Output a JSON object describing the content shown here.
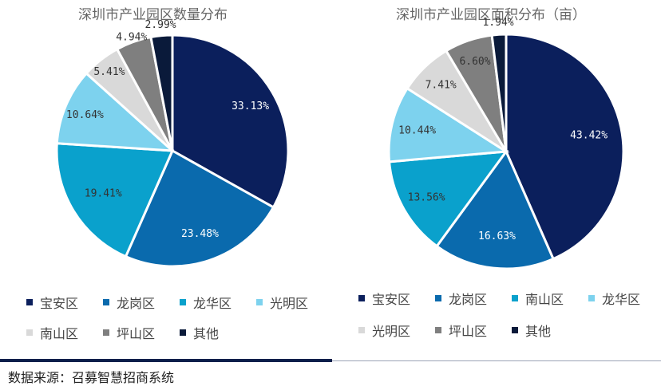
{
  "chart_data": [
    {
      "type": "pie",
      "title": "深圳市产业园区数量分布",
      "series": [
        {
          "name": "宝安区",
          "value": 33.13,
          "label": "33.13%",
          "color": "#0b1f5c",
          "label_color": "#ffffff"
        },
        {
          "name": "龙岗区",
          "value": 23.48,
          "label": "23.48%",
          "color": "#0a6aad",
          "label_color": "#ffffff"
        },
        {
          "name": "龙华区",
          "value": 19.41,
          "label": "19.41%",
          "color": "#0aa1cc",
          "label_color": "#333333"
        },
        {
          "name": "光明区",
          "value": 10.64,
          "label": "10.64%",
          "color": "#7dd2ee",
          "label_color": "#333333"
        },
        {
          "name": "南山区",
          "value": 5.41,
          "label": "5.41%",
          "color": "#d9d9d9",
          "label_color": "#333333"
        },
        {
          "name": "坪山区",
          "value": 4.94,
          "label": "4.94%",
          "color": "#7f7f7f",
          "label_color": "#333333"
        },
        {
          "name": "其他",
          "value": 2.99,
          "label": "2.99%",
          "color": "#0a1a3a",
          "label_color": "#333333"
        }
      ],
      "legend_position": "bottom"
    },
    {
      "type": "pie",
      "title": "深圳市产业园区面积分布（亩）",
      "series": [
        {
          "name": "宝安区",
          "value": 43.42,
          "label": "43.42%",
          "color": "#0b1f5c",
          "label_color": "#ffffff"
        },
        {
          "name": "龙岗区",
          "value": 16.63,
          "label": "16.63%",
          "color": "#0a6aad",
          "label_color": "#ffffff"
        },
        {
          "name": "南山区",
          "value": 13.56,
          "label": "13.56%",
          "color": "#0aa1cc",
          "label_color": "#333333"
        },
        {
          "name": "龙华区",
          "value": 10.44,
          "label": "10.44%",
          "color": "#7dd2ee",
          "label_color": "#333333"
        },
        {
          "name": "光明区",
          "value": 7.41,
          "label": "7.41%",
          "color": "#d9d9d9",
          "label_color": "#333333"
        },
        {
          "name": "坪山区",
          "value": 6.6,
          "label": "6.60%",
          "color": "#7f7f7f",
          "label_color": "#333333"
        },
        {
          "name": "其他",
          "value": 1.94,
          "label": "1.94%",
          "color": "#0a1a3a",
          "label_color": "#333333"
        }
      ],
      "legend_position": "bottom"
    }
  ],
  "source": "数据来源：召募智慧招商系统"
}
